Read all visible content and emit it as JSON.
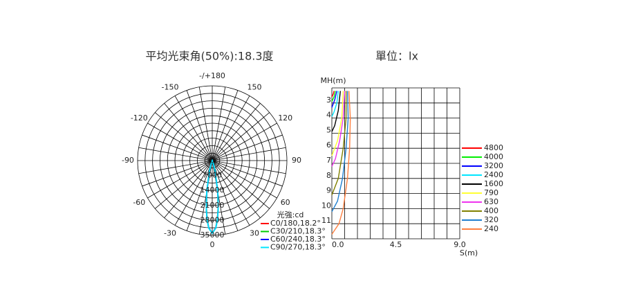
{
  "chart_data": [
    {
      "type": "polar",
      "title": "平均光束角(50%):18.3度",
      "unit_label": "光強:cd",
      "rlim": [
        0,
        35000
      ],
      "rticks": [
        0,
        7000,
        14000,
        21000,
        28000,
        35000
      ],
      "rgrid": [
        3500,
        7000,
        10500,
        14000,
        17500,
        21000,
        24500,
        28000,
        31500,
        35000
      ],
      "aticks": [
        {
          "value": 180,
          "label": "-/+180"
        },
        150,
        -150,
        120,
        -120,
        90,
        -90,
        60,
        -60,
        30,
        -30,
        0
      ],
      "agrid": [
        0,
        10,
        20,
        30,
        40,
        50,
        60,
        70,
        80,
        90,
        100,
        110,
        120,
        130,
        140,
        150,
        160,
        170,
        180,
        190,
        200,
        210,
        220,
        230,
        240,
        250,
        260,
        270,
        280,
        290,
        300,
        310,
        320,
        330,
        340,
        350
      ],
      "angles": [
        -30,
        -20,
        -15,
        -10,
        -7,
        -5,
        -3,
        0,
        3,
        5,
        7,
        10,
        15,
        20,
        30
      ],
      "series": [
        {
          "name": "C0/180,18.2°",
          "color": "#ff0000",
          "values": [
            0,
            1200,
            5200,
            14700,
            22500,
            27600,
            31500,
            34000,
            31500,
            27600,
            22500,
            14700,
            5200,
            1200,
            0
          ]
        },
        {
          "name": "C30/210,18.3°",
          "color": "#00cc00",
          "values": [
            0,
            1300,
            5400,
            14900,
            22700,
            27700,
            31600,
            34000,
            31600,
            27700,
            22700,
            14900,
            5400,
            1300,
            0
          ]
        },
        {
          "name": "C60/240,18.3°",
          "color": "#0000ff",
          "values": [
            0,
            1300,
            5400,
            15000,
            22800,
            27800,
            31600,
            34000,
            31600,
            27800,
            22800,
            15000,
            5400,
            1300,
            0
          ]
        },
        {
          "name": "C90/270,18.3°",
          "color": "#00e5ff",
          "values": [
            0,
            1300,
            5500,
            15100,
            22900,
            27800,
            31700,
            34000,
            31700,
            27800,
            22900,
            15100,
            5500,
            1300,
            0
          ]
        }
      ]
    },
    {
      "type": "isoline",
      "title": "單位：lx",
      "ylabel": "MH(m)",
      "xlabel": "S(m)",
      "xlim": [
        0,
        9
      ],
      "ylim": [
        2,
        12
      ],
      "xticks": [
        {
          "value": 0,
          "label": "0.0"
        },
        4.5,
        {
          "value": 9,
          "label": "9.0"
        }
      ],
      "yticks": [
        3,
        4,
        5,
        6,
        7,
        8,
        9,
        10,
        11
      ],
      "xgrid": [
        0,
        0.9,
        1.8,
        2.7,
        3.6,
        4.5,
        5.4,
        6.3,
        7.2,
        8.1,
        9
      ],
      "ygrid": [
        2,
        3,
        4,
        5,
        6,
        7,
        8,
        9,
        10,
        11,
        12
      ],
      "series": [
        {
          "name": "4800",
          "color": "#ff0000",
          "x": [
            0.15,
            0.1,
            0
          ],
          "y": [
            2.2,
            2.4,
            2.6
          ]
        },
        {
          "name": "4000",
          "color": "#00ee00",
          "x": [
            0.25,
            0.15,
            0
          ],
          "y": [
            2.2,
            2.6,
            2.9
          ]
        },
        {
          "name": "3200",
          "color": "#0000ff",
          "x": [
            0.35,
            0.2,
            0
          ],
          "y": [
            2.2,
            2.8,
            3.3
          ]
        },
        {
          "name": "2400",
          "color": "#00e5ff",
          "x": [
            0.45,
            0.35,
            0.15,
            0
          ],
          "y": [
            2.2,
            3,
            3.6,
            3.9
          ]
        },
        {
          "name": "1600",
          "color": "#000000",
          "x": [
            0.6,
            0.45,
            0.2,
            0
          ],
          "y": [
            2.2,
            3.5,
            4.5,
            4.9
          ]
        },
        {
          "name": "790",
          "color": "#ffff33",
          "x": [
            0.8,
            0.7,
            0.4,
            0
          ],
          "y": [
            2.2,
            4,
            5.5,
            6.5
          ]
        },
        {
          "name": "630",
          "color": "#ee33ee",
          "x": [
            0.9,
            0.8,
            0.55,
            0.25,
            0
          ],
          "y": [
            2.2,
            4,
            5.5,
            6.7,
            7.2
          ]
        },
        {
          "name": "400",
          "color": "#808000",
          "x": [
            1.0,
            1.0,
            0.8,
            0.45,
            0
          ],
          "y": [
            2.2,
            4,
            6,
            8,
            9.1
          ]
        },
        {
          "name": "320",
          "color": "#1f7fcf",
          "x": [
            1.1,
            1.15,
            1.0,
            0.75,
            0.4,
            0
          ],
          "y": [
            2.2,
            4,
            6,
            8,
            9.5,
            10.2
          ]
        },
        {
          "name": "240",
          "color": "#ff7f3f",
          "x": [
            1.2,
            1.3,
            1.25,
            1.1,
            0.8,
            0.5,
            0
          ],
          "y": [
            2.2,
            4,
            6,
            8,
            10,
            11,
            11.7
          ]
        }
      ]
    }
  ]
}
